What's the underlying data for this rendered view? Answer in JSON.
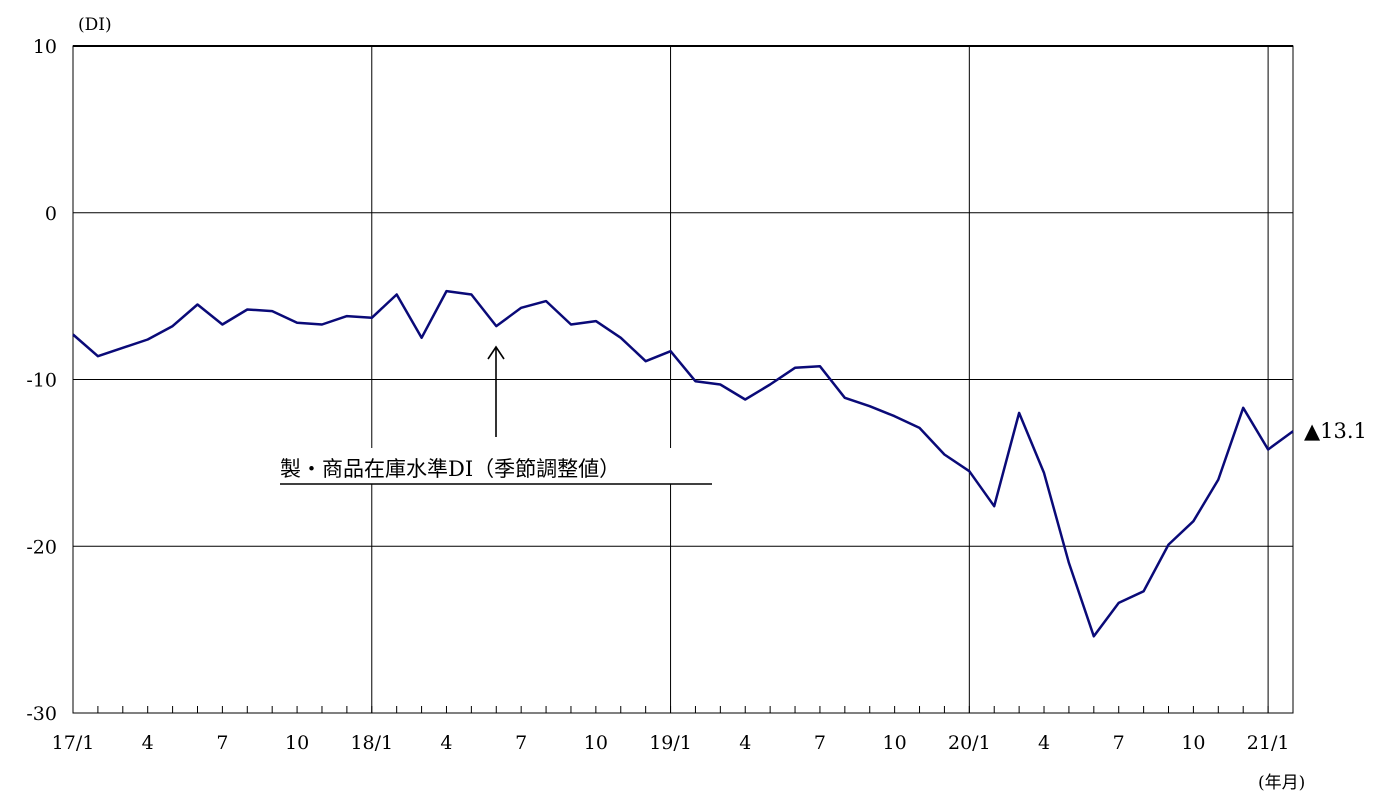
{
  "chart_data": {
    "type": "line",
    "ylabel": "(DI)",
    "xlabel": "(年月)",
    "ylim": [
      -30,
      10
    ],
    "yticks": [
      10,
      0,
      -10,
      -20,
      -30
    ],
    "grid": true,
    "xtick_labels": [
      "17/1",
      "4",
      "7",
      "10",
      "18/1",
      "4",
      "7",
      "10",
      "19/1",
      "4",
      "7",
      "10",
      "20/1",
      "4",
      "7",
      "10",
      "21/1"
    ],
    "series": [
      {
        "name": "製・商品在庫水準DI（季節調整値）",
        "color": "#0a0a78",
        "x": [
          "17/1",
          "17/2",
          "17/3",
          "17/4",
          "17/5",
          "17/6",
          "17/7",
          "17/8",
          "17/9",
          "17/10",
          "17/11",
          "17/12",
          "18/1",
          "18/2",
          "18/3",
          "18/4",
          "18/5",
          "18/6",
          "18/7",
          "18/8",
          "18/9",
          "18/10",
          "18/11",
          "18/12",
          "19/1",
          "19/2",
          "19/3",
          "19/4",
          "19/5",
          "19/6",
          "19/7",
          "19/8",
          "19/9",
          "19/10",
          "19/11",
          "19/12",
          "20/1",
          "20/2",
          "20/3",
          "20/4",
          "20/5",
          "20/6",
          "20/7",
          "20/8",
          "20/9",
          "20/10",
          "20/11",
          "20/12",
          "21/1",
          "21/2"
        ],
        "values": [
          -7.3,
          -8.6,
          -8.1,
          -7.6,
          -6.8,
          -5.5,
          -6.7,
          -5.8,
          -5.9,
          -6.6,
          -6.7,
          -6.2,
          -6.3,
          -4.9,
          -7.5,
          -4.7,
          -4.9,
          -6.8,
          -5.7,
          -5.3,
          -6.7,
          -6.5,
          -7.5,
          -8.9,
          -8.3,
          -10.1,
          -10.3,
          -11.2,
          -10.3,
          -9.3,
          -9.2,
          -11.1,
          -11.6,
          -12.2,
          -12.9,
          -14.5,
          -15.5,
          -17.6,
          -12.0,
          -15.6,
          -21.0,
          -25.4,
          -23.4,
          -22.7,
          -19.9,
          -18.5,
          -16.0,
          -11.7,
          -14.2,
          -13.1
        ]
      }
    ],
    "annotations": {
      "series_label": "製・商品在庫水準DI（季節調整値）",
      "last_value_label": "▲13.1"
    }
  }
}
